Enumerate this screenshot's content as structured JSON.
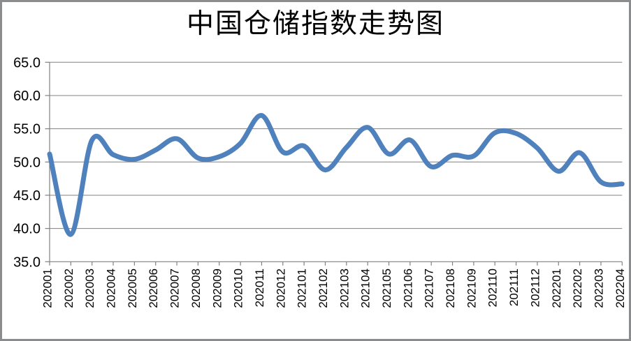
{
  "chart_data": {
    "type": "line",
    "title": "中国仓储指数走势图",
    "categories": [
      "202001",
      "202002",
      "202003",
      "202004",
      "202005",
      "202006",
      "202007",
      "202008",
      "202009",
      "202010",
      "202011",
      "202012",
      "202101",
      "202102",
      "202103",
      "202104",
      "202105",
      "202106",
      "202107",
      "202108",
      "202109",
      "202110",
      "202111",
      "202112",
      "202201",
      "202202",
      "202203",
      "202204"
    ],
    "values": [
      51.2,
      39.1,
      53.3,
      51.1,
      50.4,
      51.8,
      53.5,
      50.6,
      50.8,
      52.8,
      57.0,
      51.5,
      52.4,
      48.8,
      52.2,
      55.2,
      51.2,
      53.3,
      49.3,
      51.0,
      50.9,
      54.4,
      54.3,
      52.1,
      48.6,
      51.4,
      47.0,
      46.7
    ],
    "xlabel": "",
    "ylabel": "",
    "ylim": [
      35.0,
      65.0
    ],
    "ytick_labels": [
      "35.0",
      "40.0",
      "45.0",
      "50.0",
      "55.0",
      "60.0",
      "65.0"
    ],
    "grid": true,
    "legend": false,
    "smoothed_line": true,
    "colors": {
      "line": "#4F81BD",
      "grid": "#808080",
      "axis": "#808080",
      "text": "#000000",
      "frame": "#8A8C8E",
      "background": "#FFFFFF"
    }
  }
}
